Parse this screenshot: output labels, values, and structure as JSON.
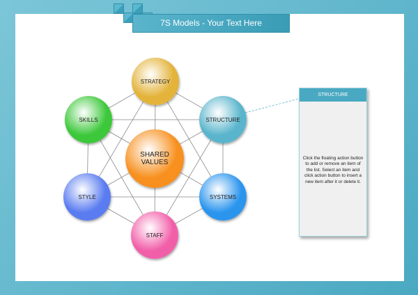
{
  "title": "7S Models - Your Text Here",
  "center": {
    "label_line1": "SHARED",
    "label_line2": "VALUES",
    "color": "#f7901e"
  },
  "nodes": [
    {
      "id": "strategy",
      "label": "STRATEGY",
      "color": "#e3b33a"
    },
    {
      "id": "structure",
      "label": "STRUCTURE",
      "color": "#5ab5cc"
    },
    {
      "id": "systems",
      "label": "SYSTEMS",
      "color": "#2b95ee"
    },
    {
      "id": "staff",
      "label": "STAFF",
      "color": "#f25fa9"
    },
    {
      "id": "style",
      "label": "STYLE",
      "color": "#5a7cf0"
    },
    {
      "id": "skills",
      "label": "SKILLS",
      "color": "#3cc83a"
    }
  ],
  "panel": {
    "title": "STRUCTURE",
    "text": "Click the floating action button to add or remove an item of the list. Select an item and click action button to insert a new item after it or delete it."
  }
}
